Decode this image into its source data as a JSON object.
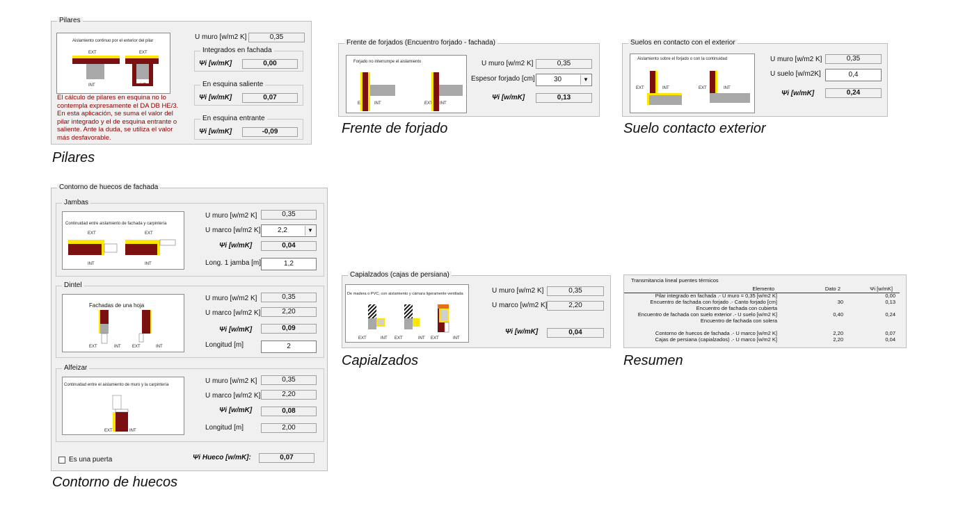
{
  "captions": {
    "pilares": "Pilares",
    "frente": "Frente de forjado",
    "suelo": "Suelo contacto exterior",
    "contorno": "Contorno de huecos",
    "capialzados": "Capialzados",
    "resumen": "Resumen"
  },
  "pilares": {
    "title": "Pilares",
    "image_caption": "Aislamiento continuo por el exterior del pilar",
    "img_ext": "EXT",
    "img_int": "INT",
    "u_muro_label": "U muro [w/m2 K]",
    "u_muro_value": "0,35",
    "integrados_title": "Integrados en fachada",
    "integrados_psi_label": "Ψi [w/mK]",
    "integrados_psi_value": "0,00",
    "saliente_title": "En esquina saliente",
    "saliente_psi_label": "Ψi [w/mK]",
    "saliente_psi_value": "0,07",
    "entrante_title": "En esquina entrante",
    "entrante_psi_label": "Ψi [w/mK]",
    "entrante_psi_value": "-0,09",
    "note": "El cálculo de pilares en esquina no lo contempla expresamente el DA DB HE/3. En esta aplicación, se suma el valor del pilar integrado y el de esquina entrante o saliente. Ante la duda, se utiliza el valor más desfavorable."
  },
  "frente": {
    "title": "Frente de forjados (Encuentro forjado - fachada)",
    "image_caption": "Forjado no interrumpe el aislamiento",
    "img_ext": "EXT",
    "img_int": "INT",
    "u_muro_label": "U muro [w/m2 K]",
    "u_muro_value": "0,35",
    "espesor_label": "Espesor forjado [cm]",
    "espesor_value": "30",
    "psi_label": "Ψi [w/mK]",
    "psi_value": "0,13"
  },
  "suelo": {
    "title": "Suelos en contacto con el exterior",
    "image_caption": "Aislamiento sobre el forjado o con la continuidad",
    "img_ext": "EXT",
    "img_int": "INT",
    "u_muro_label": "U muro [w/m2 K]",
    "u_muro_value": "0,35",
    "u_suelo_label": "U suelo [w/m2K]",
    "u_suelo_value": "0,4",
    "psi_label": "Ψi [w/mK]",
    "psi_value": "0,24"
  },
  "contorno": {
    "title": "Contorno de huecos de fachada",
    "jambas": {
      "title": "Jambas",
      "image_caption": "Continuidad entre aislamiento de fachada y carpintería",
      "img_ext": "EXT",
      "img_int": "INT",
      "u_muro_label": "U muro [w/m2 K]",
      "u_muro_value": "0,35",
      "u_marco_label": "U marco [w/m2 K]",
      "u_marco_value": "2,2",
      "psi_label": "Ψi [w/mK]",
      "psi_value": "0,04",
      "long_label": "Long. 1 jamba [m]",
      "long_value": "1,2"
    },
    "dintel": {
      "title": "Dintel",
      "image_caption": "Fachadas de una hoja",
      "img_ext": "EXT",
      "img_int": "INT",
      "u_muro_label": "U muro [w/m2 K]",
      "u_muro_value": "0,35",
      "u_marco_label": "U marco [w/m2 K]",
      "u_marco_value": "2,20",
      "psi_label": "Ψi [w/mK]",
      "psi_value": "0,09",
      "long_label": "Longitud [m]",
      "long_value": "2"
    },
    "alfeizar": {
      "title": "Alfeizar",
      "image_caption": "Continuidad entre el aislamiento de muro y la carpintería",
      "img_ext": "EXT",
      "img_int": "INT",
      "u_muro_label": "U muro [w/m2 K]",
      "u_muro_value": "0,35",
      "u_marco_label": "U marco [w/m2 K]",
      "u_marco_value": "2,20",
      "psi_label": "Ψi [w/mK]",
      "psi_value": "0,08",
      "long_label": "Longitud [m]",
      "long_value": "2,00"
    },
    "puerta_label": "Es una puerta",
    "psi_hueco_label": "Ψi Hueco [w/mK]:",
    "psi_hueco_value": "0,07"
  },
  "capialzados": {
    "title": "Capialzados (cajas de persiana)",
    "image_caption": "De madera o PVC, con aislamiento y cámara ligeramente ventilada",
    "img_ext": "EXT",
    "img_int": "INT",
    "u_muro_label": "U muro [w/m2 K]",
    "u_muro_value": "0,35",
    "u_marco_label": "U marco [w/m2 K]",
    "u_marco_value": "2,20",
    "psi_label": "Ψi [w/mK]",
    "psi_value": "0,04"
  },
  "resumen": {
    "title": "Transmitancia lineal puentes térmicos",
    "headers": [
      "Elemento",
      "Dato 2",
      "Ψi [w/mK]"
    ],
    "rows": [
      {
        "elemento": "Pilar integrado en fachada .- U muro = 0,35 [w/m2 K]",
        "dato": "",
        "psi": "0,00"
      },
      {
        "elemento": "Encuentro de fachada con forjado .- Canto forjado [cm]",
        "dato": "30",
        "psi": "0,13"
      },
      {
        "elemento": "Encuentro de fachada con cubierta",
        "dato": "",
        "psi": ""
      },
      {
        "elemento": "Encuentro de fachada con suelo exterior .- U suelo [w/m2 K]",
        "dato": "0,40",
        "psi": "0,24"
      },
      {
        "elemento": "Encuentro de fachada con solera",
        "dato": "",
        "psi": ""
      },
      {
        "elemento": "",
        "dato": "",
        "psi": ""
      },
      {
        "elemento": "Contorno de huecos de fachada .- U marco [w/m2 K]",
        "dato": "2,20",
        "psi": "0,07"
      },
      {
        "elemento": "Cajas de persiana (capialzados) .- U marco [w/m2 K]",
        "dato": "2,20",
        "psi": "0,04"
      }
    ]
  }
}
